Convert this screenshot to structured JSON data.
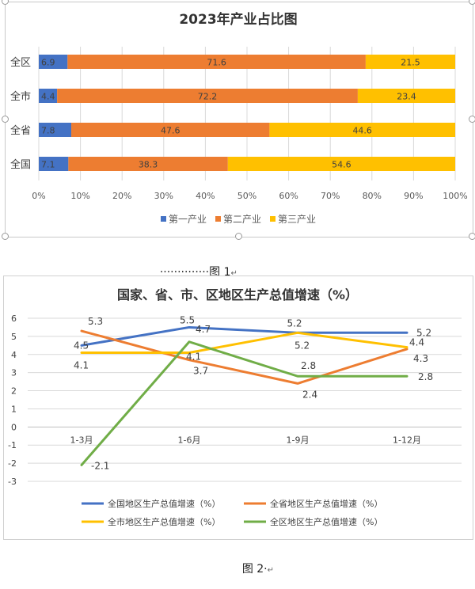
{
  "chart_data": [
    {
      "type": "bar",
      "title": "2023年产业占比图",
      "categories": [
        "全区",
        "全市",
        "全省",
        "全国"
      ],
      "series": [
        {
          "name": "第一产业",
          "values": [
            6.9,
            4.4,
            7.8,
            7.1
          ],
          "color": "#4472c4",
          "labels": [
            "6.9",
            "4.4",
            "7.8",
            "7.1"
          ]
        },
        {
          "name": "第二产业",
          "values": [
            71.6,
            72.2,
            47.6,
            38.3
          ],
          "color": "#ed7d31",
          "labels": [
            "71.6",
            "72.2",
            "47.6",
            "38.3"
          ]
        },
        {
          "name": "第三产业",
          "values": [
            21.5,
            23.4,
            44.6,
            54.6
          ],
          "color": "#ffc000",
          "labels": [
            "21.5",
            "23.4",
            "44.6",
            "54.6"
          ]
        }
      ],
      "xlim": [
        0,
        100
      ],
      "x_ticks": [
        "0%",
        "10%",
        "20%",
        "30%",
        "40%",
        "50%",
        "60%",
        "70%",
        "80%",
        "90%",
        "100%"
      ],
      "stacked": true,
      "orientation": "horizontal",
      "legend": "bottom",
      "grid": true
    },
    {
      "type": "line",
      "title": "国家、省、市、区地区生产总值增速（%）",
      "categories": [
        "1-3月",
        "1-6月",
        "1-9月",
        "1-12月"
      ],
      "series": [
        {
          "name": "全国地区生产总值增速（%）",
          "values": [
            4.5,
            5.5,
            5.2,
            5.2
          ],
          "color": "#4472c4",
          "labels": [
            "4.5",
            "5.5",
            "5.2",
            "5.2"
          ]
        },
        {
          "name": "全省地区生产总值增速（%）",
          "values": [
            5.3,
            3.7,
            2.4,
            4.3
          ],
          "color": "#ed7d31",
          "labels": [
            "5.3",
            "3.7",
            "2.4",
            "4.3"
          ]
        },
        {
          "name": "全市地区生产总值增速（%）",
          "values": [
            4.1,
            4.1,
            5.2,
            4.4
          ],
          "color": "#ffc000",
          "labels": [
            "4.1",
            "4.1",
            "5.2",
            "4.4"
          ]
        },
        {
          "name": "全区地区生产总值增速（%）",
          "values": [
            -2.1,
            4.7,
            2.8,
            2.8
          ],
          "color": "#70ad47",
          "labels": [
            "-2.1",
            "4.7",
            "2.8",
            "2.8"
          ]
        }
      ],
      "ylim": [
        -3,
        6
      ],
      "y_ticks": [
        "-3",
        "-2",
        "-1",
        "0",
        "1",
        "2",
        "3",
        "4",
        "5",
        "6"
      ],
      "legend": "bottom",
      "grid": true
    }
  ],
  "captions": {
    "figure1": "··············图 1",
    "figure1_mark": "↵",
    "figure2": "图 2·",
    "figure2_mark": "↵"
  }
}
